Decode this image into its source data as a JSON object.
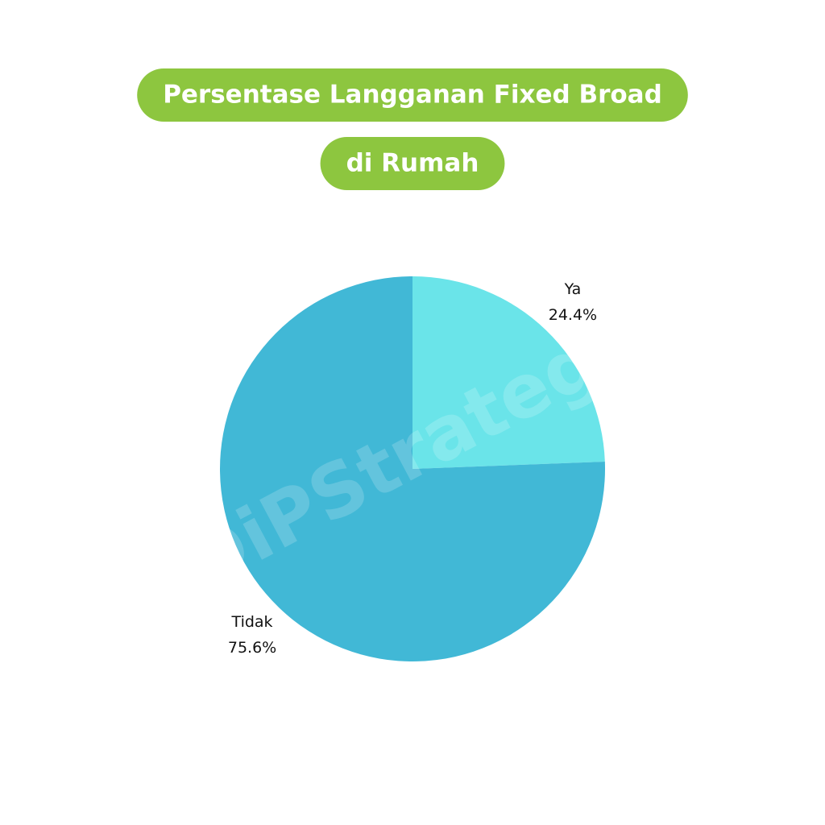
{
  "chart_data": {
    "type": "pie",
    "title": [
      "Persentase Langganan Fixed Broad",
      "di Rumah"
    ],
    "categories": [
      "Ya",
      "Tidak"
    ],
    "values": [
      24.4,
      75.6
    ],
    "value_labels": [
      "24.4%",
      "75.6%"
    ],
    "colors": [
      "#6ae4e9",
      "#41b8d6"
    ],
    "title_color": "#8dc63f",
    "watermark": "DiPStrategy"
  }
}
